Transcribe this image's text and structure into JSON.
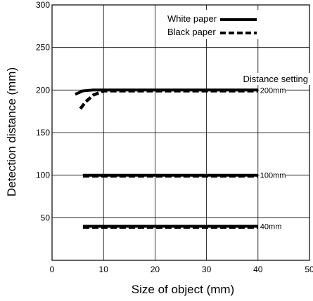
{
  "chart_data": {
    "type": "line",
    "xlabel": "Size of object (mm)",
    "ylabel": "Detection distance  (mm)",
    "xlim": [
      0,
      50
    ],
    "ylim": [
      0,
      300
    ],
    "xticks": [
      0,
      10,
      20,
      30,
      40,
      50
    ],
    "yticks": [
      50,
      100,
      150,
      200,
      250,
      300
    ],
    "grid": true,
    "legend_position": "top-right",
    "series": [
      {
        "name": "White paper",
        "style": "solid",
        "color": "#000000",
        "segments": [
          [
            [
              4.5,
              195
            ],
            [
              6,
              199
            ],
            [
              8,
              200
            ],
            [
              10,
              200
            ],
            [
              40,
              200
            ]
          ],
          [
            [
              6,
              100
            ],
            [
              40,
              100
            ]
          ],
          [
            [
              6,
              40
            ],
            [
              40,
              40
            ]
          ]
        ]
      },
      {
        "name": "Black paper",
        "style": "dashed",
        "color": "#000000",
        "segments": [
          [
            [
              5.5,
              178
            ],
            [
              6.5,
              186
            ],
            [
              8,
              194
            ],
            [
              10,
              199
            ],
            [
              40,
              199
            ]
          ],
          [
            [
              6,
              99
            ],
            [
              40,
              99
            ]
          ],
          [
            [
              6,
              39
            ],
            [
              40,
              39
            ]
          ]
        ]
      }
    ],
    "annotations": [
      {
        "text": "Distance setting",
        "x": 37,
        "y": 210
      }
    ],
    "setting_labels": [
      {
        "text": "200mm",
        "y": 200
      },
      {
        "text": "100mm",
        "y": 100
      },
      {
        "text": "40mm",
        "y": 40
      }
    ]
  }
}
